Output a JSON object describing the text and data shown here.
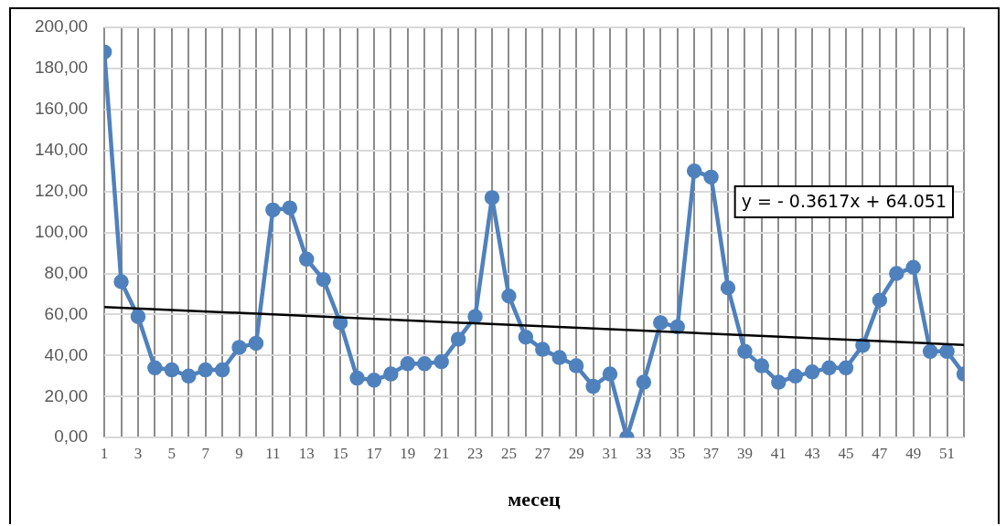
{
  "chart_data": {
    "type": "line",
    "xlabel": "месец",
    "x": [
      1,
      2,
      3,
      4,
      5,
      6,
      7,
      8,
      9,
      10,
      11,
      12,
      13,
      14,
      15,
      16,
      17,
      18,
      19,
      20,
      21,
      22,
      23,
      24,
      25,
      26,
      27,
      28,
      29,
      30,
      31,
      32,
      33,
      34,
      35,
      36,
      37,
      38,
      39,
      40,
      41,
      42,
      43,
      44,
      45,
      46,
      47,
      48,
      49,
      50,
      51,
      52
    ],
    "series": [
      {
        "color": "#4f81bd",
        "marker": "circle",
        "values": [
          188,
          76,
          59,
          34,
          33,
          30,
          33,
          33,
          44,
          46,
          111,
          112,
          87,
          77,
          56,
          29,
          28,
          31,
          36,
          36,
          37,
          48,
          59,
          117,
          69,
          49,
          43,
          39,
          35,
          25,
          31,
          0,
          27,
          56,
          54,
          130,
          127,
          73,
          42,
          35,
          27,
          30,
          32,
          34,
          34,
          45,
          67,
          80,
          83,
          42,
          42,
          31
        ]
      },
      {
        "type": "line",
        "color": "#000000",
        "marker": "none",
        "x": [
          1,
          52
        ],
        "values": [
          63.7,
          45.2
        ]
      }
    ],
    "xlim": [
      1,
      52
    ],
    "xticks": [
      1,
      {
        "value": 2,
        "label": null
      },
      3,
      {
        "value": 4,
        "label": null
      },
      5,
      {
        "value": 6,
        "label": null
      },
      7,
      {
        "value": 8,
        "label": null
      },
      9,
      {
        "value": 10,
        "label": null
      },
      11,
      {
        "value": 12,
        "label": null
      },
      13,
      {
        "value": 14,
        "label": null
      },
      15,
      {
        "value": 16,
        "label": null
      },
      17,
      {
        "value": 18,
        "label": null
      },
      19,
      {
        "value": 20,
        "label": null
      },
      21,
      {
        "value": 22,
        "label": null
      },
      23,
      {
        "value": 24,
        "label": null
      },
      25,
      {
        "value": 26,
        "label": null
      },
      27,
      {
        "value": 28,
        "label": null
      },
      29,
      {
        "value": 30,
        "label": null
      },
      31,
      {
        "value": 32,
        "label": null
      },
      33,
      {
        "value": 34,
        "label": null
      },
      35,
      {
        "value": 36,
        "label": null
      },
      37,
      {
        "value": 38,
        "label": null
      },
      39,
      {
        "value": 40,
        "label": null
      },
      41,
      {
        "value": 42,
        "label": null
      },
      43,
      {
        "value": 44,
        "label": null
      },
      45,
      {
        "value": 46,
        "label": null
      },
      47,
      {
        "value": 48,
        "label": null
      },
      49,
      {
        "value": 50,
        "label": null
      },
      51,
      {
        "value": 52,
        "label": null
      }
    ],
    "ylim": [
      0,
      200
    ],
    "yticks": [
      {
        "value": 0,
        "label": "0,00"
      },
      {
        "value": 20,
        "label": "20,00"
      },
      {
        "value": 40,
        "label": "40,00"
      },
      {
        "value": 60,
        "label": "60,00"
      },
      {
        "value": 80,
        "label": "80,00"
      },
      {
        "value": 100,
        "label": "100,00"
      },
      {
        "value": 120,
        "label": "120,00"
      },
      {
        "value": 140,
        "label": "140,00"
      },
      {
        "value": 160,
        "label": "160,00"
      },
      {
        "value": 180,
        "label": "180,00"
      },
      {
        "value": 200,
        "label": "200,00"
      }
    ],
    "grid": true,
    "legend": false,
    "annotations": [
      "y = - 0.3617x + 64.051"
    ]
  }
}
